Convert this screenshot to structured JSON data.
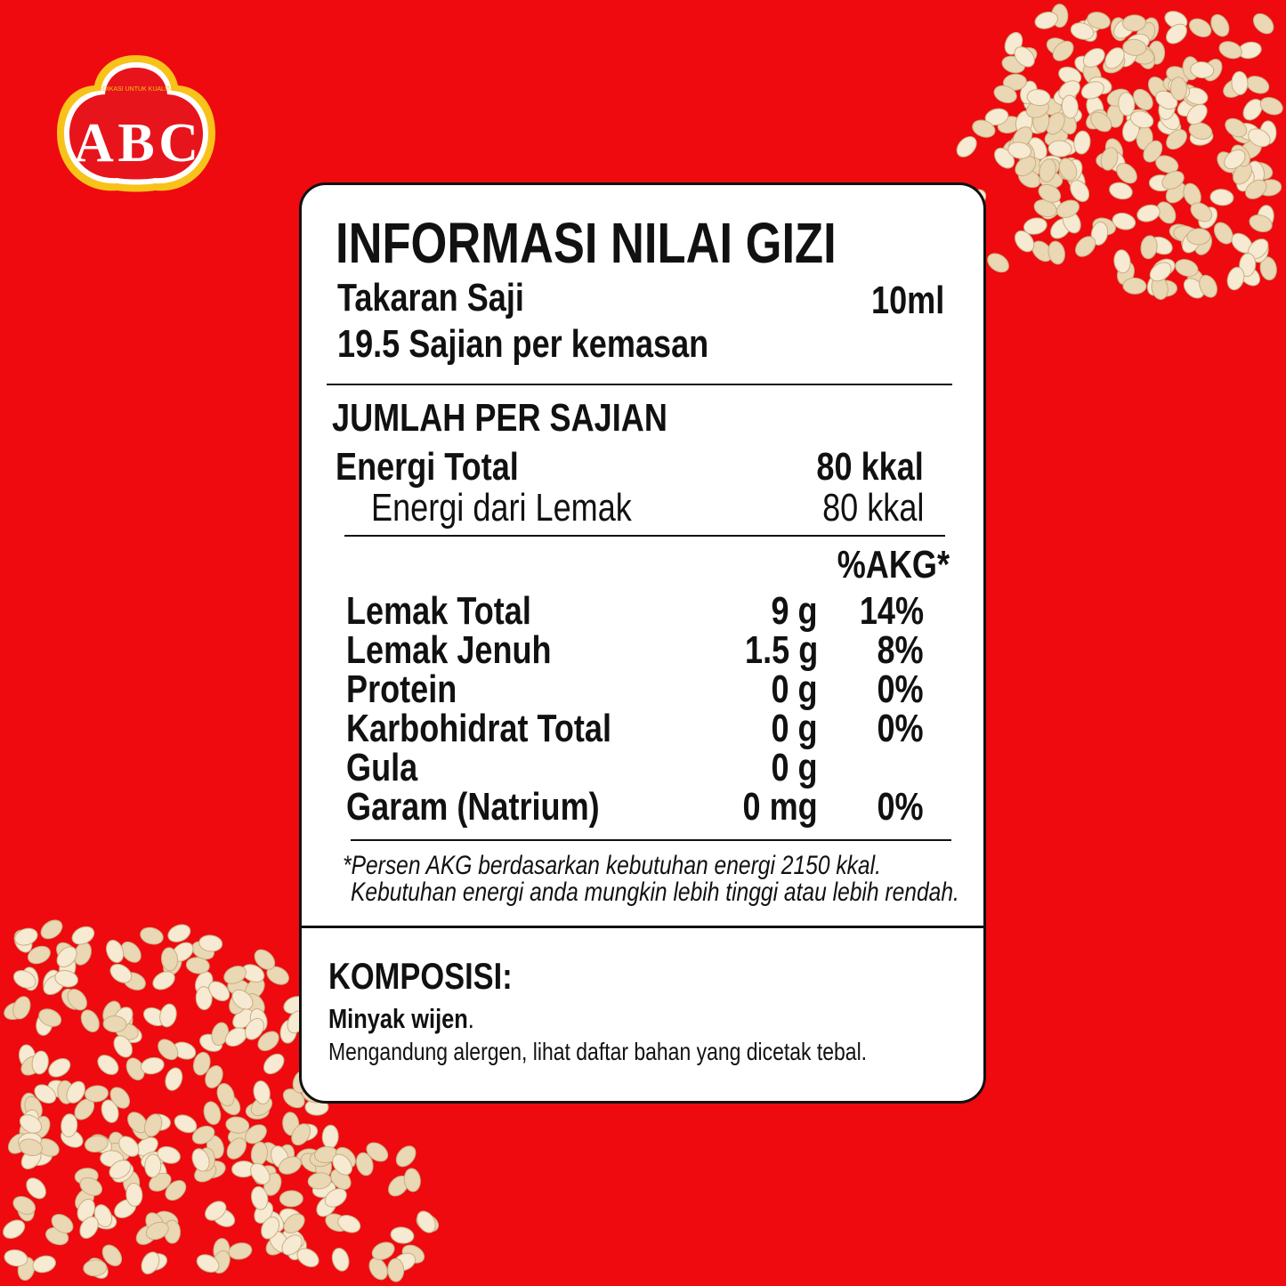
{
  "brand": {
    "logo_text": "ABC",
    "logo_tagline": "DEDIKASI UNTUK KUALITAS",
    "colors": {
      "background": "#ee0a0f",
      "logo_ring": "#f7c21a",
      "text": "#111111"
    }
  },
  "label": {
    "title": "INFORMASI NILAI GIZI",
    "serving_size_label": "Takaran Saji",
    "serving_size_value": "10ml",
    "servings_per_pack": "19.5 Sajian per kemasan",
    "amount_per_serving": "JUMLAH PER SAJIAN",
    "energy_total_label": "Energi Total",
    "energy_total_value": "80 kkal",
    "energy_fat_label": "Energi dari Lemak",
    "energy_fat_value": "80 kkal",
    "akg_header": "%AKG*",
    "nutrients": [
      {
        "name": "Lemak Total",
        "amount": "9 g",
        "akg": "14%"
      },
      {
        "name": "Lemak Jenuh",
        "amount": "1.5 g",
        "akg": "8%"
      },
      {
        "name": "Protein",
        "amount": "0 g",
        "akg": "0%"
      },
      {
        "name": "Karbohidrat Total",
        "amount": "0 g",
        "akg": "0%"
      },
      {
        "name": "Gula",
        "amount": "0 g",
        "akg": ""
      },
      {
        "name": "Garam (Natrium)",
        "amount": "0 mg",
        "akg": "0%"
      }
    ],
    "footnote_line1": "*Persen AKG berdasarkan kebutuhan energi 2150 kkal.",
    "footnote_line2": "Kebutuhan energi anda mungkin lebih tinggi atau lebih rendah."
  },
  "composition": {
    "title": "KOMPOSISI:",
    "ingredients": "Minyak wijen",
    "ingredients_end": ".",
    "allergen_note": "Mengandung alergen, lihat daftar bahan yang dicetak tebal."
  }
}
